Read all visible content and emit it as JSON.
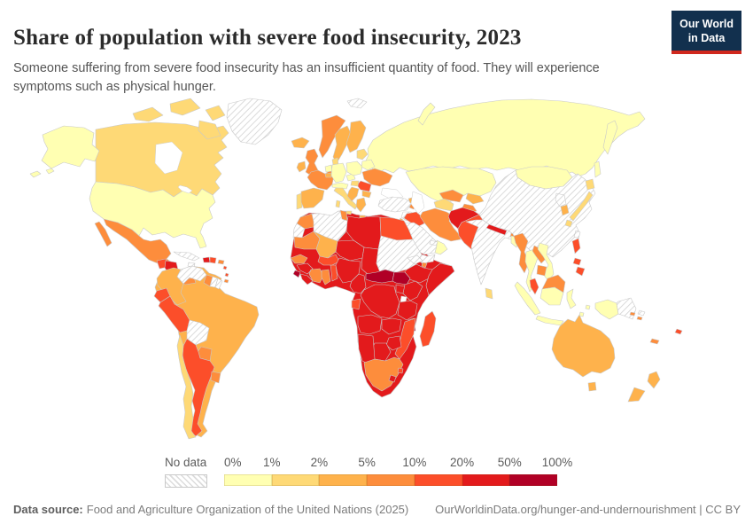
{
  "header": {
    "title": "Share of population with severe food insecurity, 2023",
    "subtitle": "Someone suffering from severe food insecurity has an insufficient quantity of food. They will experience symptoms such as physical hunger.",
    "logo": {
      "line1": "Our World",
      "line2": "in Data",
      "bg_color": "#12304e",
      "bar_color": "#d0281e"
    }
  },
  "legend": {
    "no_data_label": "No data",
    "tick_labels": [
      "0%",
      "1%",
      "2%",
      "5%",
      "10%",
      "20%",
      "50%",
      "100%"
    ],
    "bins": [
      {
        "range": "0-1%",
        "color": "#FFFFB2"
      },
      {
        "range": "1-2%",
        "color": "#FED976"
      },
      {
        "range": "2-5%",
        "color": "#FEB24C"
      },
      {
        "range": "5-10%",
        "color": "#FD8D3C"
      },
      {
        "range": "10-20%",
        "color": "#FC4E2A"
      },
      {
        "range": "20-50%",
        "color": "#E31A1C"
      },
      {
        "range": "50-100%",
        "color": "#B10026"
      }
    ],
    "no_data_style": "diagonal-hatch"
  },
  "footer": {
    "source_label": "Data source:",
    "source_text": "Food and Agriculture Organization of the United Nations (2025)",
    "link": "OurWorldinData.org/hunger-and-undernourishment | CC BY"
  },
  "chart_data": {
    "type": "heatmap",
    "subtype": "choropleth-world-map",
    "title": "Share of population with severe food insecurity, 2023",
    "unit": "% of population",
    "scale_ticks": [
      "0%",
      "1%",
      "2%",
      "5%",
      "10%",
      "20%",
      "50%",
      "100%"
    ],
    "legend_position": "bottom",
    "regions": {
      "united-states": "0-1%",
      "canada": "1-2%",
      "greenland": "no-data",
      "mexico": "5-10%",
      "guatemala": "10-20%",
      "honduras-nicaragua": "20-50%",
      "costa-rica-panama": "5-10%",
      "cuba": "no-data",
      "jamaica": "no-data",
      "haiti": "20-50%",
      "dominican-republic": "10-20%",
      "puerto-rico": "5-10%",
      "lesser-antilles": "10-20%",
      "trinidad-and-tobago": "5-10%",
      "brazil": "2-5%",
      "colombia": "2-5%",
      "venezuela": "no-data",
      "guyana": "5-10%",
      "suriname": "no-data",
      "french-guiana": "no-data",
      "ecuador": "10-20%",
      "peru": "10-20%",
      "bolivia": "no-data",
      "paraguay": "5-10%",
      "chile": "1-2%",
      "argentina": "10-20%",
      "uruguay": "5-10%",
      "iceland": "2-5%",
      "norway": "5-10%",
      "sweden": "2-5%",
      "finland": "2-5%",
      "denmark": "1-2%",
      "united-kingdom": "5-10%",
      "ireland": "2-5%",
      "portugal": "1-2%",
      "spain": "2-5%",
      "france": "5-10%",
      "netherlands": "0-1%",
      "belgium": "2-5%",
      "germany": "0-1%",
      "switzerland-austria": "0-1%",
      "italy": "1-2%",
      "czechia": "0-1%",
      "poland": "0-1%",
      "baltic-states": "1-2%",
      "belarus": "0-1%",
      "ukraine": "5-10%",
      "romania": "10-20%",
      "hungary": "1-2%",
      "balkans": "2-5%",
      "greece": "2-5%",
      "bulgaria": "2-5%",
      "russia": "0-1%",
      "svalbard": "no-data",
      "kazakhstan": "0-1%",
      "mongolia": "0-1%",
      "china": "no-data",
      "india": "no-data",
      "nepal": "20-50%",
      "bhutan": "5-10%",
      "bangladesh": "0-1%",
      "sri-lanka": "1-2%",
      "pakistan": "10-20%",
      "afghanistan": "20-50%",
      "iran": "5-10%",
      "iraq": "10-20%",
      "turkey": "no-data",
      "syria-levant": "no-data",
      "israel": "2-5%",
      "saudi-arabia": "no-data",
      "yemen": "no-data",
      "oman": "0-1%",
      "united-arab-emirates": "no-data",
      "georgia": "2-5%",
      "armenia": "5-10%",
      "azerbaijan": "5-10%",
      "turkmenistan": "1-2%",
      "uzbekistan": "5-10%",
      "kyrgyzstan": "2-5%",
      "tajikistan": "5-10%",
      "myanmar": "5-10%",
      "thailand": "0-1%",
      "laos": "5-10%",
      "vietnam": "0-1%",
      "cambodia": "5-10%",
      "malaysia": "10-20%",
      "east-malaysia": "5-10%",
      "indonesia": "0-1%",
      "timor-leste": "5-10%",
      "papua-new-guinea": "no-data",
      "philippines": "10-20%",
      "taiwan": "no-data",
      "north-korea": "no-data",
      "south-korea": "2-5%",
      "japan": "1-2%",
      "africa-mainland": "20-50%",
      "morocco": "5-10%",
      "western-sahara": "no-data",
      "algeria": "no-data",
      "tunisia": "5-10%",
      "libya": "20-50%",
      "egypt": "10-20%",
      "mauritania": "5-10%",
      "mali": "2-5%",
      "niger": "20-50%",
      "chad": "20-50%",
      "sudan": "no-data",
      "eritrea": "no-data",
      "djibouti": "5-10%",
      "ethiopia": "20-50%",
      "somalia": "20-50%",
      "senegal-gambia": "5-10%",
      "guinea": "20-50%",
      "sierra-leone": "50-100%",
      "liberia": "20-50%",
      "cote-divoire": "5-10%",
      "ghana": "5-10%",
      "togo-benin": "10-20%",
      "burkina-faso": "10-20%",
      "nigeria": "20-50%",
      "cameroon": "20-50%",
      "central-african-republic": "50-100%",
      "south-sudan": "50-100%",
      "uganda": "20-50%",
      "kenya": "20-50%",
      "democratic-republic-of-congo": "20-50%",
      "gabon-congo": "10-20%",
      "tanzania": "20-50%",
      "angola": "20-50%",
      "zambia": "20-50%",
      "malawi": "50-100%",
      "mozambique": "10-20%",
      "zimbabwe": "20-50%",
      "botswana": "20-50%",
      "namibia": "20-50%",
      "south-africa": "5-10%",
      "lesotho": "20-50%",
      "eswatini": "10-20%",
      "madagascar": "10-20%",
      "australia": "2-5%",
      "new-zealand": "2-5%",
      "fiji": "10-20%",
      "new-caledonia": "5-10%",
      "solomon-islands": "5-10%"
    }
  }
}
